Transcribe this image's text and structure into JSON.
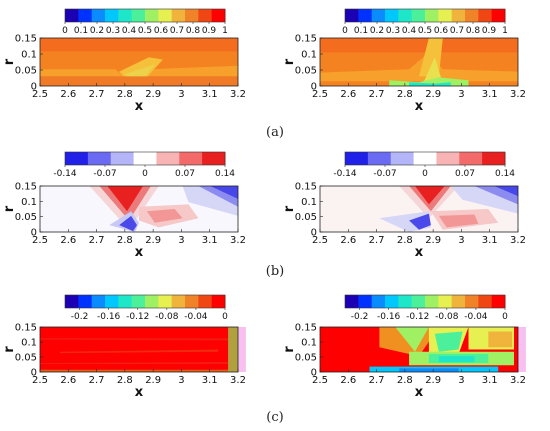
{
  "colors": {
    "jet": [
      "#1c00b4",
      "#0032ff",
      "#0a8cff",
      "#00c8ff",
      "#1ee6c8",
      "#4cf09a",
      "#a0f064",
      "#e6f050",
      "#f0b43c",
      "#f08228",
      "#f04614",
      "#ff0000"
    ],
    "diverging": [
      "#2020e8",
      "#6a6af2",
      "#b4b4f8",
      "#ffffff",
      "#f8b4b4",
      "#f26a6a",
      "#e82020"
    ]
  },
  "panels": [
    {
      "label": "(a)",
      "colorbar": {
        "min": 0,
        "max": 1,
        "ticks": [
          "0",
          "0.1",
          "0.2",
          "0.3",
          "0.4",
          "0.5",
          "0.6",
          "0.7",
          "0.8",
          "0.9",
          "1"
        ],
        "colormap": "jet"
      },
      "plots": [
        {
          "variant": "a-left"
        },
        {
          "variant": "a-right"
        }
      ]
    },
    {
      "label": "(b)",
      "colorbar": {
        "min": -0.14,
        "max": 0.14,
        "ticks": [
          "-0.14",
          "-0.07",
          "0",
          "0.07",
          "0.14"
        ],
        "colormap": "diverging"
      },
      "plots": [
        {
          "variant": "b-left"
        },
        {
          "variant": "b-right"
        }
      ]
    },
    {
      "label": "(c)",
      "colorbar": {
        "min": -0.22,
        "max": 0,
        "ticks": [
          "-0.2",
          "-0.16",
          "-0.12",
          "-0.08",
          "-0.04",
          "0"
        ],
        "colormap": "jet"
      },
      "plots": [
        {
          "variant": "c-left"
        },
        {
          "variant": "c-right"
        }
      ]
    }
  ],
  "chart_data": [
    {
      "type": "heatmap",
      "panel": "(a)",
      "position": "left",
      "xlabel": "x",
      "ylabel": "r",
      "xlim": [
        2.5,
        3.2
      ],
      "ylim": [
        0,
        0.15
      ],
      "xticks": [
        "2.5",
        "2.6",
        "2.7",
        "2.8",
        "2.9",
        "3",
        "3.1",
        "3.2"
      ],
      "yticks": [
        "0",
        "0.05",
        "0.1",
        "0.15"
      ],
      "colorbar_range": [
        0,
        1
      ]
    },
    {
      "type": "heatmap",
      "panel": "(a)",
      "position": "right",
      "xlabel": "x",
      "ylabel": "r",
      "xlim": [
        2.5,
        3.2
      ],
      "ylim": [
        0,
        0.15
      ],
      "xticks": [
        "2.5",
        "2.6",
        "2.7",
        "2.8",
        "2.9",
        "3",
        "3.1",
        "3.2"
      ],
      "yticks": [
        "0",
        "0.05",
        "0.1",
        "0.15"
      ],
      "colorbar_range": [
        0,
        1
      ]
    },
    {
      "type": "heatmap",
      "panel": "(b)",
      "position": "left",
      "xlabel": "x",
      "ylabel": "r",
      "xlim": [
        2.5,
        3.2
      ],
      "ylim": [
        0,
        0.15
      ],
      "xticks": [
        "2.5",
        "2.6",
        "2.7",
        "2.8",
        "2.9",
        "3",
        "3.1",
        "3.2"
      ],
      "yticks": [
        "0",
        "0.05",
        "0.1",
        "0.15"
      ],
      "colorbar_range": [
        -0.14,
        0.14
      ]
    },
    {
      "type": "heatmap",
      "panel": "(b)",
      "position": "right",
      "xlabel": "x",
      "ylabel": "r",
      "xlim": [
        2.5,
        3.2
      ],
      "ylim": [
        0,
        0.15
      ],
      "xticks": [
        "2.5",
        "2.6",
        "2.7",
        "2.8",
        "2.9",
        "3",
        "3.1",
        "3.2"
      ],
      "yticks": [
        "0",
        "0.05",
        "0.1",
        "0.15"
      ],
      "colorbar_range": [
        -0.14,
        0.14
      ]
    },
    {
      "type": "heatmap",
      "panel": "(c)",
      "position": "left",
      "xlabel": "x",
      "ylabel": "r",
      "xlim": [
        2.5,
        3.2
      ],
      "ylim": [
        0,
        0.15
      ],
      "xticks": [
        "2.5",
        "2.6",
        "2.7",
        "2.8",
        "2.9",
        "3",
        "3.1",
        "3.2"
      ],
      "yticks": [
        "0",
        "0.05",
        "0.1",
        "0.15"
      ],
      "colorbar_range": [
        -0.22,
        0
      ]
    },
    {
      "type": "heatmap",
      "panel": "(c)",
      "position": "right",
      "xlabel": "x",
      "ylabel": "r",
      "xlim": [
        2.5,
        3.2
      ],
      "ylim": [
        0,
        0.15
      ],
      "xticks": [
        "2.5",
        "2.6",
        "2.7",
        "2.8",
        "2.9",
        "3",
        "3.1",
        "3.2"
      ],
      "yticks": [
        "0",
        "0.05",
        "0.1",
        "0.15"
      ],
      "colorbar_range": [
        -0.22,
        0
      ]
    }
  ]
}
